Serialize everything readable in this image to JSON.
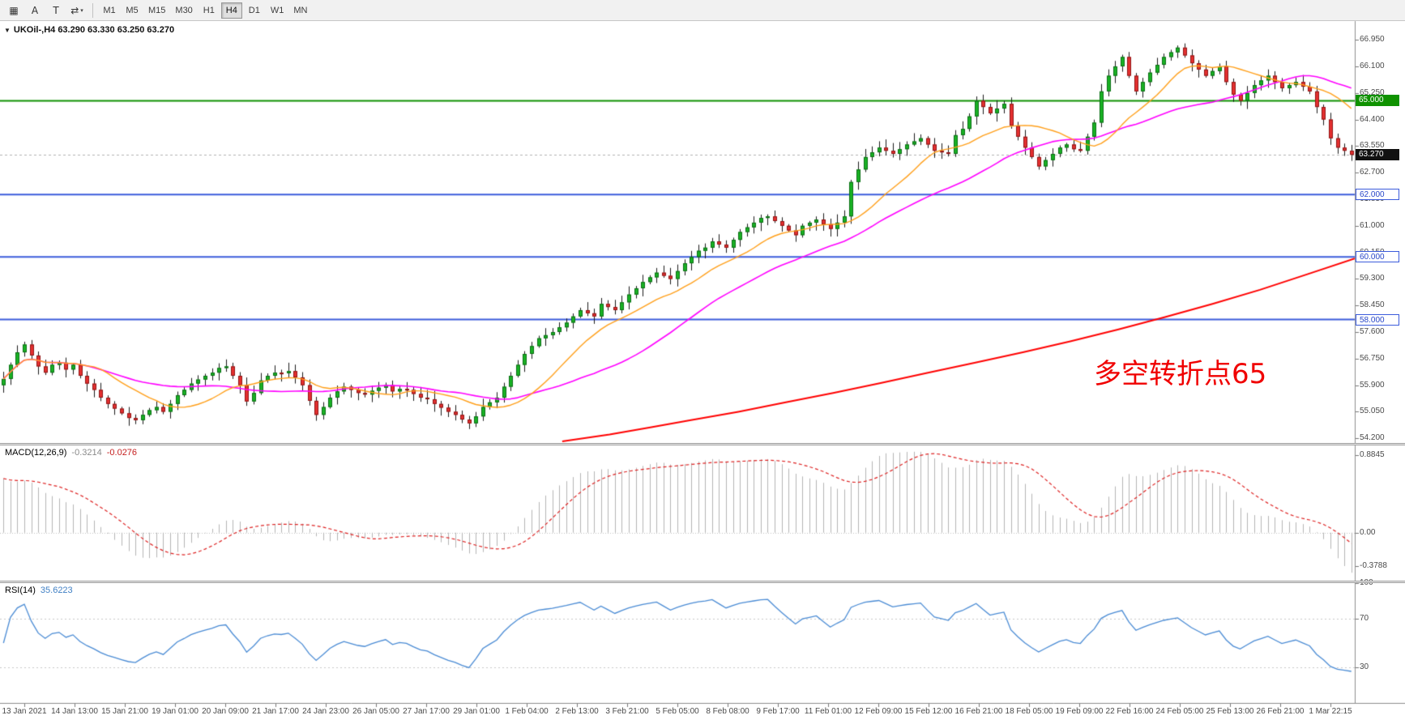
{
  "toolbar": {
    "tools": [
      {
        "name": "chart-grid",
        "glyph": "▦"
      },
      {
        "name": "arrow-a",
        "glyph": "A"
      },
      {
        "name": "text-t",
        "glyph": "T"
      },
      {
        "name": "cycle",
        "glyph": "⇄",
        "caret": "▾"
      }
    ],
    "timeframes": [
      "M1",
      "M5",
      "M15",
      "M30",
      "H1",
      "H4",
      "D1",
      "W1",
      "MN"
    ],
    "active_timeframe": "H4"
  },
  "chart_data": {
    "type": "candlestick",
    "symbol_info": "UKOil-,H4 63.290 63.330 63.250 63.270",
    "annotation": {
      "text": "多空转折点65",
      "color": "#f00000"
    },
    "price_axis": {
      "min": 54.05,
      "max": 67.55,
      "ticks": [
        "66.950",
        "66.100",
        "65.250",
        "64.400",
        "63.550",
        "62.700",
        "61.850",
        "61.000",
        "60.150",
        "59.300",
        "58.450",
        "57.600",
        "56.750",
        "55.900",
        "55.050",
        "54.200"
      ]
    },
    "time_labels": [
      "13 Jan 2021",
      "14 Jan 13:00",
      "15 Jan 21:00",
      "19 Jan 01:00",
      "20 Jan 09:00",
      "21 Jan 17:00",
      "24 Jan 23:00",
      "26 Jan 05:00",
      "27 Jan 17:00",
      "29 Jan 01:00",
      "1 Feb 04:00",
      "2 Feb 13:00",
      "3 Feb 21:00",
      "5 Feb 05:00",
      "8 Feb 08:00",
      "9 Feb 17:00",
      "11 Feb 01:00",
      "12 Feb 09:00",
      "15 Feb 12:00",
      "16 Feb 21:00",
      "18 Feb 05:00",
      "19 Feb 09:00",
      "22 Feb 16:00",
      "24 Feb 05:00",
      "25 Feb 13:00",
      "26 Feb 21:00",
      "1 Mar 22:15"
    ],
    "candles": {
      "first_open": 55.9,
      "closes": [
        56.1,
        56.55,
        56.95,
        57.2,
        56.85,
        56.5,
        56.3,
        56.55,
        56.62,
        56.4,
        56.55,
        56.2,
        55.95,
        55.75,
        55.5,
        55.3,
        55.15,
        55.0,
        54.85,
        54.78,
        54.95,
        55.1,
        55.2,
        55.05,
        55.3,
        55.58,
        55.75,
        55.95,
        56.08,
        56.2,
        56.3,
        56.45,
        56.5,
        56.2,
        55.9,
        55.38,
        55.65,
        56.05,
        56.2,
        56.3,
        56.28,
        56.35,
        56.15,
        55.9,
        55.4,
        54.95,
        55.2,
        55.5,
        55.7,
        55.85,
        55.75,
        55.65,
        55.6,
        55.72,
        55.82,
        55.9,
        55.7,
        55.78,
        55.75,
        55.62,
        55.5,
        55.45,
        55.3,
        55.18,
        55.05,
        54.95,
        54.8,
        54.68,
        54.9,
        55.2,
        55.35,
        55.5,
        55.85,
        56.2,
        56.55,
        56.9,
        57.15,
        57.4,
        57.5,
        57.6,
        57.75,
        57.9,
        58.1,
        58.3,
        58.2,
        58.1,
        58.5,
        58.4,
        58.3,
        58.55,
        58.8,
        59.0,
        59.2,
        59.35,
        59.5,
        59.4,
        59.3,
        59.55,
        59.8,
        60.0,
        60.2,
        60.3,
        60.5,
        60.4,
        60.3,
        60.55,
        60.8,
        60.95,
        61.1,
        61.25,
        61.3,
        61.15,
        61.0,
        60.85,
        60.7,
        61.0,
        61.1,
        61.2,
        61.05,
        60.9,
        61.1,
        61.3,
        62.4,
        62.8,
        63.2,
        63.35,
        63.5,
        63.4,
        63.3,
        63.45,
        63.6,
        63.7,
        63.8,
        63.6,
        63.4,
        63.35,
        63.3,
        63.9,
        64.1,
        64.5,
        65.0,
        64.8,
        64.6,
        64.75,
        64.9,
        64.2,
        63.85,
        63.5,
        63.2,
        62.9,
        63.1,
        63.3,
        63.5,
        63.6,
        63.45,
        63.4,
        63.85,
        64.3,
        65.3,
        65.8,
        66.1,
        66.4,
        65.8,
        65.3,
        65.6,
        65.9,
        66.15,
        66.4,
        66.55,
        66.7,
        66.45,
        66.2,
        66.0,
        65.8,
        65.95,
        66.1,
        65.6,
        65.2,
        65.0,
        65.25,
        65.5,
        65.65,
        65.8,
        65.6,
        65.4,
        65.5,
        65.6,
        65.45,
        65.3,
        64.8,
        64.4,
        63.8,
        63.5,
        63.4,
        63.27
      ],
      "up_color": "#19b224",
      "down_color": "#e53030",
      "wick_color": "#1a1a1a"
    },
    "hlines": [
      {
        "price": 65.0,
        "color": "#0f9200",
        "width": 2,
        "label": "65.000",
        "tag": "green"
      },
      {
        "price": 62.0,
        "color": "#3b5bdb",
        "width": 2,
        "label": "62.000",
        "tag": "blue"
      },
      {
        "price": 60.0,
        "color": "#3b5bdb",
        "width": 2,
        "label": "60.000",
        "tag": "blue"
      },
      {
        "price": 58.0,
        "color": "#3b5bdb",
        "width": 2,
        "label": "58.000",
        "tag": "blue"
      }
    ],
    "current_price": {
      "value": 63.27,
      "label": "63.270",
      "line_color": "#b0b0b0",
      "tag": "black"
    },
    "moving_averages": {
      "fast": {
        "period": 13,
        "color": "#ff9f1a"
      },
      "mid": {
        "period": 30,
        "color": "#ff00ff"
      },
      "slow": {
        "color": "#ff0000",
        "points": [
          [
            0.415,
            54.1
          ],
          [
            0.45,
            54.32
          ],
          [
            0.48,
            54.55
          ],
          [
            0.51,
            54.78
          ],
          [
            0.545,
            55.05
          ],
          [
            0.58,
            55.35
          ],
          [
            0.615,
            55.65
          ],
          [
            0.65,
            55.97
          ],
          [
            0.685,
            56.3
          ],
          [
            0.72,
            56.62
          ],
          [
            0.755,
            56.95
          ],
          [
            0.79,
            57.3
          ],
          [
            0.825,
            57.68
          ],
          [
            0.86,
            58.08
          ],
          [
            0.895,
            58.5
          ],
          [
            0.93,
            58.95
          ],
          [
            0.965,
            59.45
          ],
          [
            1.0,
            59.95
          ]
        ]
      }
    },
    "macd": {
      "label": "MACD(12,26,9)",
      "value_main": "-0.3214",
      "value_signal": "-0.0276",
      "fast": 12,
      "slow": 26,
      "signal": 9,
      "range": [
        -0.55,
        1.0
      ],
      "scale_ticks": [
        {
          "label": "0.8845",
          "value": 0.8845
        },
        {
          "label": "0.00",
          "value": 0.0
        },
        {
          "label": "-0.3788",
          "value": -0.3788
        }
      ],
      "histogram_color": "#b4b4b4",
      "signal_color": "#dd2222"
    },
    "rsi": {
      "label": "RSI(14)",
      "value": "35.6223",
      "period": 14,
      "range": [
        0,
        100
      ],
      "scale_ticks": [
        {
          "label": "100",
          "value": 100
        },
        {
          "label": "70",
          "value": 70
        },
        {
          "label": "30",
          "value": 30
        }
      ],
      "levels": [
        70,
        30
      ],
      "line_color": "#4a8bd4",
      "level_color": "#c8c8c8"
    }
  }
}
